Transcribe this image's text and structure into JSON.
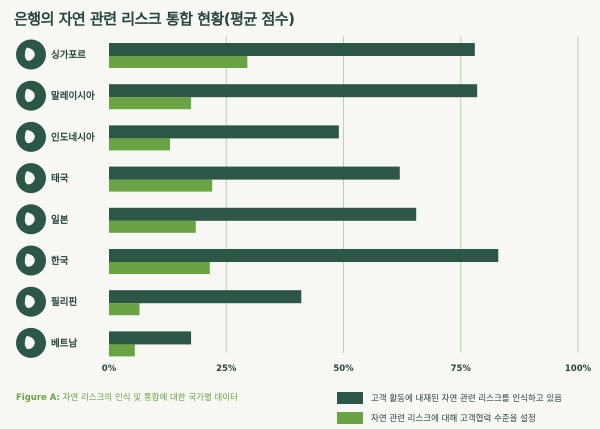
{
  "title": "은행의 자연 관련 리스크 통합 현황(평균 점수)",
  "caption_prefix": "Figure A:",
  "caption_text": "자연 리스크의 인식 및 통합에 대한 국가별 데이터",
  "colors": {
    "series1": "#2c5645",
    "series2": "#6aa343",
    "grid": "#b9d3a6",
    "text": "#27463a",
    "icon": "#2c5645"
  },
  "chart_data": {
    "type": "bar",
    "orientation": "horizontal",
    "title": "은행의 자연 관련 리스크 통합 현황(평균 점수)",
    "categories": [
      "싱가포르",
      "말레이시아",
      "인도네시아",
      "태국",
      "일본",
      "한국",
      "필리핀",
      "베트남"
    ],
    "series": [
      {
        "name": "고객 활동에 내재된 자연 관련 리스크를 인식하고 있음",
        "values": [
          78,
          78.5,
          49,
          62,
          65.5,
          83,
          41,
          17.5
        ]
      },
      {
        "name": "자연 관련 리스크에 대해 고객협력 수준을 설정",
        "values": [
          29.5,
          17.5,
          13,
          22,
          18.5,
          21.5,
          6.5,
          5.5
        ]
      }
    ],
    "xlim": [
      0,
      100
    ],
    "xticks": [
      "0%",
      "25%",
      "50%",
      "75%",
      "100%"
    ],
    "grid": true,
    "legend": "bottom-right"
  }
}
